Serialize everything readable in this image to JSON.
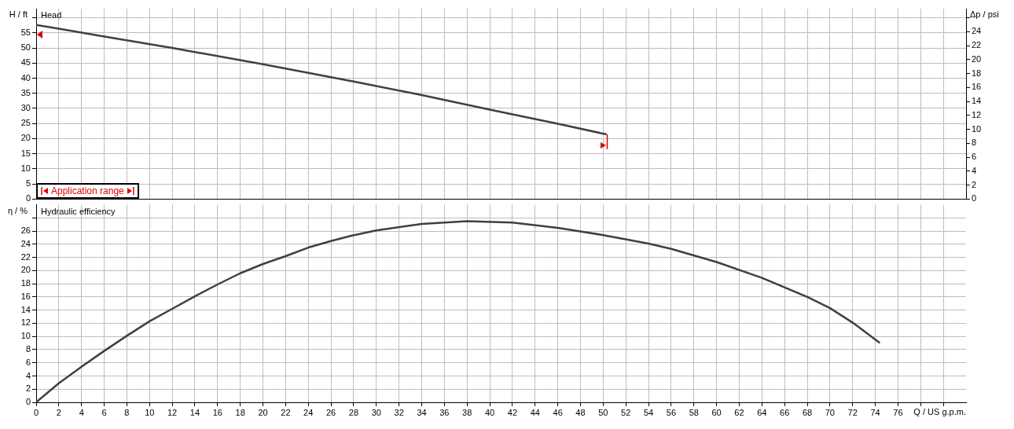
{
  "chart_data": [
    {
      "type": "line",
      "title": "Head",
      "ylabel": "H / ft",
      "y2label": "Δp / psi",
      "annotations": [
        "Application range"
      ],
      "x": [
        0,
        2,
        6,
        12,
        20,
        28,
        34,
        40,
        46,
        50.3
      ],
      "series": [
        {
          "color": "#404040",
          "values": [
            57.6,
            56.4,
            53.8,
            50,
            44.6,
            38.9,
            34.4,
            29.6,
            24.9,
            21.4
          ]
        }
      ],
      "xlim": [
        0,
        82
      ],
      "xticks": [
        0,
        2,
        4,
        6,
        8,
        10,
        12,
        14,
        16,
        18,
        20,
        22,
        24,
        26,
        28,
        30,
        32,
        34,
        36,
        38,
        40,
        42,
        44,
        46,
        48,
        50,
        52,
        54,
        56,
        58,
        60,
        62,
        64,
        66,
        68,
        70,
        72,
        74,
        76,
        78,
        80
      ],
      "ylim": [
        0,
        63
      ],
      "yticks": [
        0,
        5,
        10,
        15,
        20,
        25,
        30,
        35,
        40,
        45,
        50,
        55,
        {
          "value": 60,
          "label": null
        }
      ],
      "y2lim": [
        0,
        27.3
      ],
      "y2ticks": [
        0,
        2,
        4,
        6,
        8,
        10,
        12,
        14,
        16,
        18,
        20,
        22,
        24,
        {
          "value": 26,
          "label": null
        }
      ],
      "tick_labels": "y",
      "grid": true,
      "marker": "none",
      "line_style": "solid"
    },
    {
      "type": "line",
      "title": "Hydraulic efficiency",
      "ylabel": "η / %",
      "xlabel": "Q / US g.p.m.",
      "x": [
        0,
        2,
        4,
        6,
        8,
        10,
        12,
        14,
        16,
        18,
        20,
        22,
        24,
        26,
        27.8,
        30,
        34,
        38,
        42,
        46,
        50,
        54,
        56,
        60,
        64,
        68,
        70,
        72,
        74.4
      ],
      "series": [
        {
          "color": "#404040",
          "values": [
            0,
            2.9,
            5.4,
            7.8,
            10.1,
            12.3,
            14.2,
            16.1,
            17.9,
            19.6,
            21.0,
            22.2,
            23.5,
            24.5,
            25.3,
            26.1,
            27.1,
            27.5,
            27.3,
            26.5,
            25.4,
            24.1,
            23.3,
            21.3,
            18.9,
            16.0,
            14.3,
            12.1,
            9.0
          ]
        }
      ],
      "xlim": [
        0,
        82
      ],
      "xticks": [
        0,
        2,
        4,
        6,
        8,
        10,
        12,
        14,
        16,
        18,
        20,
        22,
        24,
        26,
        28,
        30,
        32,
        34,
        36,
        38,
        40,
        42,
        44,
        46,
        48,
        50,
        52,
        54,
        56,
        58,
        60,
        62,
        64,
        66,
        68,
        70,
        72,
        74,
        76,
        {
          "value": 78,
          "label": null
        },
        {
          "value": 80,
          "label": null
        }
      ],
      "ylim": [
        0,
        30
      ],
      "yticks": [
        0,
        2,
        4,
        6,
        8,
        10,
        12,
        14,
        16,
        18,
        20,
        22,
        24,
        26,
        {
          "value": 28,
          "label": null
        }
      ],
      "grid": true,
      "marker": "none",
      "line_style": "solid"
    }
  ]
}
